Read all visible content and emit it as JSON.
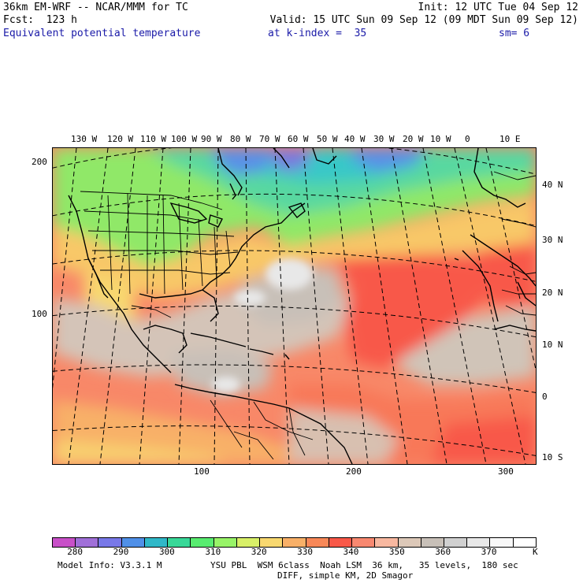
{
  "header": {
    "model": "36km EM-WRF -- NCAR/MMM for TC",
    "init": "Init: 12 UTC Tue 04 Sep 12",
    "forecast": "Fcst:  123 h",
    "valid": "Valid: 15 UTC Sun 09 Sep 12 (09 MDT Sun 09 Sep 12)",
    "field": "Equivalent potential temperature",
    "level": "at k-index =  35",
    "smoothing": "sm= 6"
  },
  "map": {
    "top_lon_labels": [
      "130 W",
      "120 W",
      "110 W",
      "100 W",
      "90 W",
      "80 W",
      "70 W",
      "60 W",
      "50 W",
      "40 W",
      "30 W",
      "20 W",
      "10 W",
      "0",
      "10 E"
    ],
    "right_lat_labels": [
      "40 N",
      "30 N",
      "20 N",
      "10 N",
      "0",
      "10 S"
    ],
    "left_grid_labels": [
      "200",
      "100"
    ],
    "bottom_grid_labels": [
      "100",
      "200",
      "300"
    ]
  },
  "colorbar": {
    "colors": [
      "#c850c8",
      "#a070d8",
      "#7878e8",
      "#5090e8",
      "#30b8c8",
      "#38d898",
      "#58ec70",
      "#98f468",
      "#d8f068",
      "#f8d870",
      "#f8b068",
      "#f88858",
      "#f85848",
      "#f88870",
      "#f8b8a0",
      "#dcc8b8",
      "#c8c0b8",
      "#d0d0d0",
      "#e8e8e8",
      "#f8f8f8",
      "#ffffff"
    ],
    "labels": [
      "280",
      "290",
      "300",
      "310",
      "320",
      "330",
      "340",
      "350",
      "360",
      "370"
    ],
    "unit": "K"
  },
  "footer": {
    "line1_left": "Model Info: V3.3.1 M",
    "line1_right": "YSU PBL  WSM 6class  Noah LSM  36 km,   35 levels,  180 sec",
    "line2": "DIFF, simple KM, 2D Smagor"
  }
}
